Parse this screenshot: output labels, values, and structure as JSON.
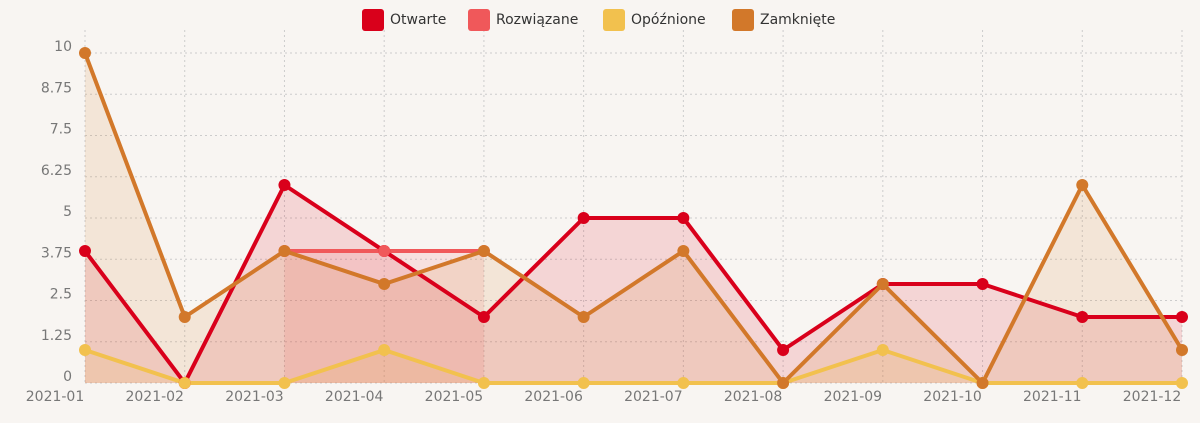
{
  "chart_data": {
    "type": "line",
    "categories": [
      "2021-01",
      "2021-02",
      "2021-03",
      "2021-04",
      "2021-05",
      "2021-06",
      "2021-07",
      "2021-08",
      "2021-09",
      "2021-10",
      "2021-11",
      "2021-12"
    ],
    "series": [
      {
        "name": "Otwarte",
        "color": "#d9001b",
        "values": [
          4,
          0,
          6,
          4,
          2,
          5,
          5,
          1,
          3,
          3,
          2,
          2
        ]
      },
      {
        "name": "Rozwiązane",
        "color": "#f0585a",
        "values": [
          null,
          null,
          4,
          4,
          4,
          null,
          null,
          null,
          null,
          null,
          null,
          null
        ]
      },
      {
        "name": "Opóźnione",
        "color": "#f2c14e",
        "values": [
          1,
          0,
          0,
          1,
          0,
          0,
          0,
          0,
          1,
          0,
          0,
          0
        ]
      },
      {
        "name": "Zamknięte",
        "color": "#d2782a",
        "values": [
          10,
          2,
          4,
          3,
          4,
          2,
          4,
          0,
          3,
          0,
          6,
          1
        ]
      }
    ],
    "ylim": [
      0,
      10
    ],
    "yticks": [
      0,
      1.25,
      2.5,
      3.75,
      5,
      6.25,
      7.5,
      8.75,
      10
    ],
    "grid": true,
    "legend": "top"
  }
}
